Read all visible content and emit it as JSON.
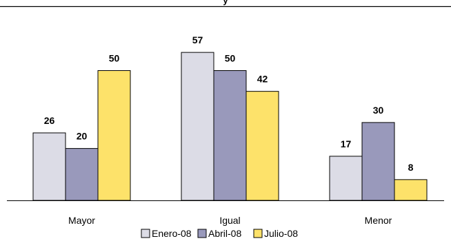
{
  "chart_data": {
    "type": "bar",
    "title": "y",
    "categories": [
      "Mayor",
      "Igual",
      "Menor"
    ],
    "series": [
      {
        "name": "Enero-08",
        "values": [
          26,
          57,
          17
        ],
        "color": "#dcdce6"
      },
      {
        "name": "Abril-08",
        "values": [
          20,
          50,
          30
        ],
        "color": "#9999bb"
      },
      {
        "name": "Julio-08",
        "values": [
          50,
          42,
          8
        ],
        "color": "#fde26a"
      }
    ],
    "ylim": [
      0,
      64
    ],
    "grid": false,
    "legend_position": "bottom",
    "xlabel": "",
    "ylabel": ""
  }
}
